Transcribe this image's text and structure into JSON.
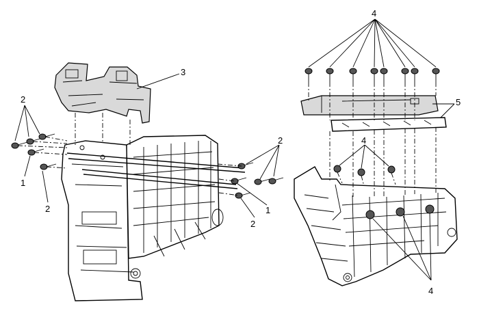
{
  "callouts": {
    "left_top_2": "2",
    "left_1": "1",
    "left_bottom_2": "2",
    "bracket_3": "3",
    "right_2": "2",
    "mid_1": "1",
    "mid_2": "2",
    "top_4": "4",
    "panel_5": "5",
    "inner_4": "4",
    "bottom_4": "4"
  },
  "colors": {
    "line": "#000000",
    "fill": "#ffffff",
    "shade": "#d9d9d9"
  }
}
